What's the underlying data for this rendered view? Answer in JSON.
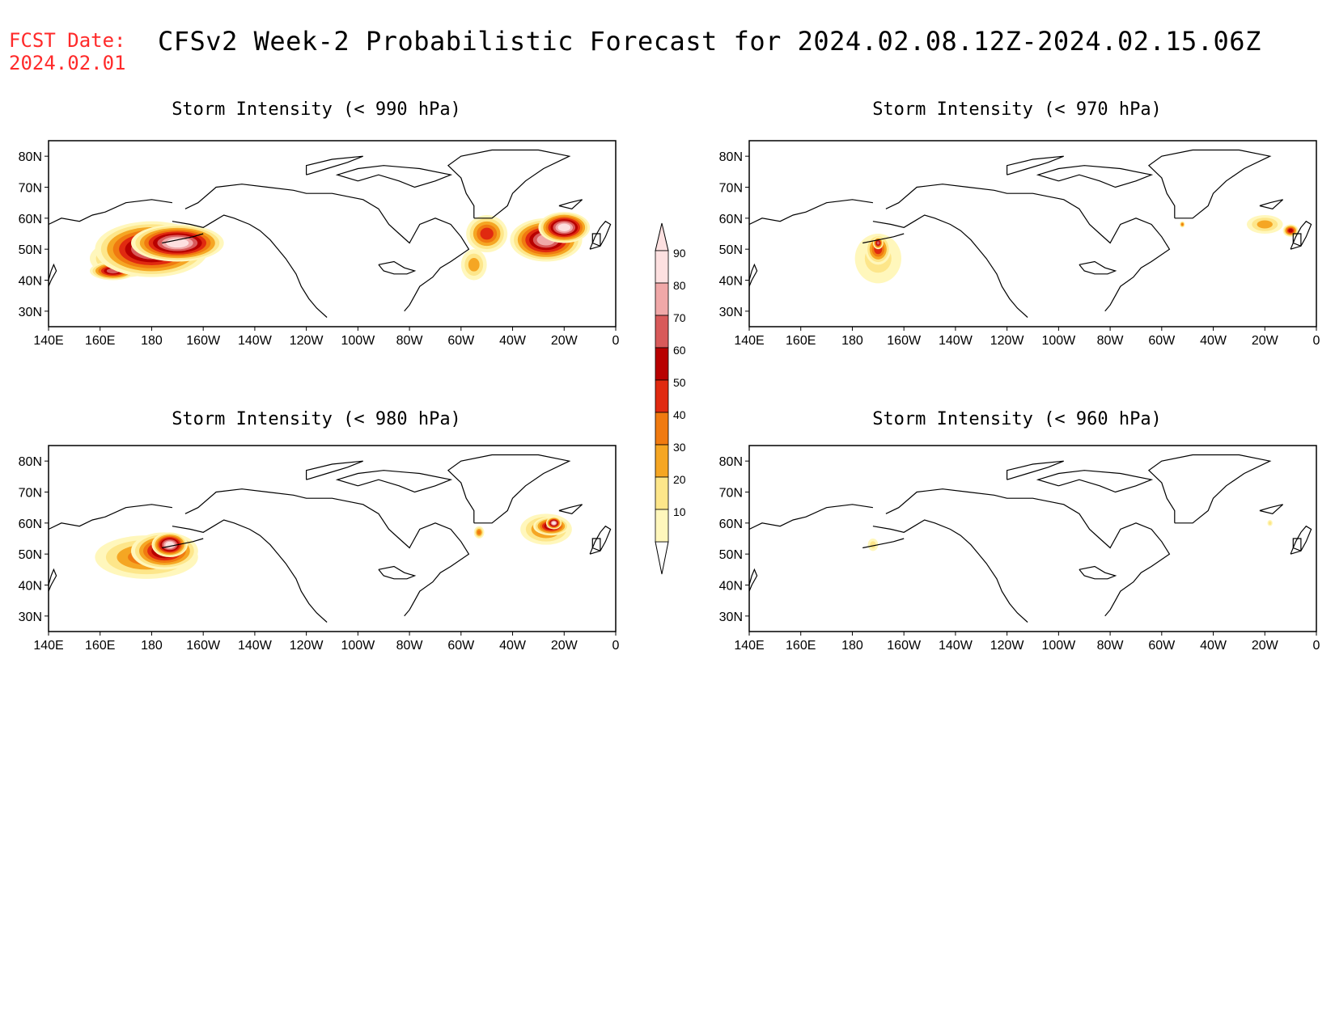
{
  "header": {
    "fcst_label": "FCST Date:",
    "fcst_date": "2024.02.01",
    "title": "CFSv2 Week-2 Probabilistic Forecast for 2024.02.08.12Z-2024.02.15.06Z"
  },
  "map": {
    "lon_ticks": [
      "140E",
      "160E",
      "180",
      "160W",
      "140W",
      "120W",
      "100W",
      "80W",
      "60W",
      "40W",
      "20W",
      "0"
    ],
    "lat_ticks": [
      "80N",
      "70N",
      "60N",
      "50N",
      "40N",
      "30N"
    ],
    "lon_range": [
      140,
      360
    ],
    "lat_range": [
      25,
      85
    ]
  },
  "colorbar": {
    "levels": [
      "10",
      "20",
      "30",
      "40",
      "50",
      "60",
      "70",
      "80",
      "90"
    ],
    "colors": [
      "#fff7bc",
      "#fde68a",
      "#f5a623",
      "#f07a10",
      "#e02a10",
      "#b80000",
      "#d85a5a",
      "#f0a8a8",
      "#fde0e0"
    ]
  },
  "panels": [
    {
      "id": "p990",
      "title": "Storm Intensity (< 990 hPa)",
      "blobs": [
        {
          "lon": 170,
          "lat": 47,
          "rx": 14,
          "ry": 6,
          "level": 4
        },
        {
          "lon": 180,
          "lat": 50,
          "rx": 22,
          "ry": 9,
          "level": 7
        },
        {
          "lon": 190,
          "lat": 52,
          "rx": 18,
          "ry": 6,
          "level": 8
        },
        {
          "lon": 165,
          "lat": 43,
          "rx": 9,
          "ry": 3,
          "level": 6
        },
        {
          "lon": 310,
          "lat": 55,
          "rx": 8,
          "ry": 6,
          "level": 4
        },
        {
          "lon": 333,
          "lat": 53,
          "rx": 14,
          "ry": 7,
          "level": 7
        },
        {
          "lon": 340,
          "lat": 57,
          "rx": 10,
          "ry": 5,
          "level": 8
        },
        {
          "lon": 305,
          "lat": 45,
          "rx": 5,
          "ry": 5,
          "level": 2
        }
      ]
    },
    {
      "id": "p970",
      "title": "Storm Intensity (< 970 hPa)",
      "blobs": [
        {
          "lon": 190,
          "lat": 47,
          "rx": 9,
          "ry": 8,
          "level": 1
        },
        {
          "lon": 190,
          "lat": 50,
          "rx": 5,
          "ry": 5,
          "level": 4
        },
        {
          "lon": 190,
          "lat": 52,
          "rx": 2,
          "ry": 2,
          "level": 6
        },
        {
          "lon": 340,
          "lat": 58,
          "rx": 7,
          "ry": 3,
          "level": 2
        },
        {
          "lon": 350,
          "lat": 56,
          "rx": 3,
          "ry": 2,
          "level": 5
        },
        {
          "lon": 308,
          "lat": 58,
          "rx": 1,
          "ry": 1,
          "level": 3
        }
      ]
    },
    {
      "id": "p980",
      "title": "Storm Intensity (< 980 hPa)",
      "blobs": [
        {
          "lon": 178,
          "lat": 49,
          "rx": 20,
          "ry": 7,
          "level": 3
        },
        {
          "lon": 185,
          "lat": 51,
          "rx": 13,
          "ry": 6,
          "level": 6
        },
        {
          "lon": 187,
          "lat": 53,
          "rx": 7,
          "ry": 4,
          "level": 8
        },
        {
          "lon": 333,
          "lat": 58,
          "rx": 10,
          "ry": 5,
          "level": 3
        },
        {
          "lon": 335,
          "lat": 59,
          "rx": 7,
          "ry": 3,
          "level": 6
        },
        {
          "lon": 336,
          "lat": 60,
          "rx": 3,
          "ry": 2,
          "level": 8
        },
        {
          "lon": 307,
          "lat": 57,
          "rx": 2,
          "ry": 2,
          "level": 3
        }
      ]
    },
    {
      "id": "p960",
      "title": "Storm Intensity (< 960 hPa)",
      "blobs": [
        {
          "lon": 188,
          "lat": 53,
          "rx": 2,
          "ry": 2,
          "level": 1
        },
        {
          "lon": 342,
          "lat": 60,
          "rx": 1,
          "ry": 1,
          "level": 1
        }
      ]
    }
  ]
}
